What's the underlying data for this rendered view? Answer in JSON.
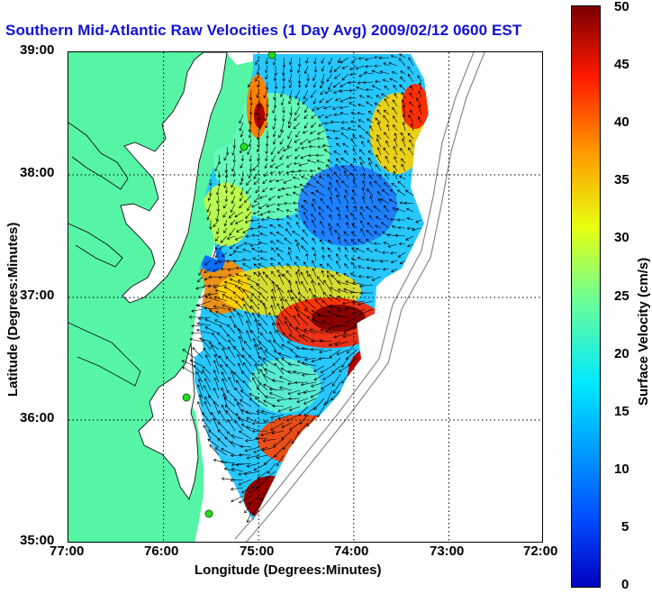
{
  "title": "Southern Mid-Atlantic Raw Velocities (1 Day Avg) 2009/02/12 0600 EST",
  "axes": {
    "xlabel": "Longitude (Degrees:Minutes)",
    "ylabel": "Latitude (Degrees:Minutes)",
    "x_ticks": [
      "77:00",
      "76:00",
      "75:00",
      "74:00",
      "73:00",
      "72:00"
    ],
    "y_ticks": [
      "39:00",
      "38:00",
      "37:00",
      "36:00",
      "35:00"
    ],
    "x_range_deg_west": [
      77,
      72
    ],
    "y_range_deg_north": [
      35,
      39
    ],
    "grid": "dotted"
  },
  "colorbar": {
    "label": "Surface Velocity (cm/s)",
    "ticks": [
      "50",
      "45",
      "40",
      "35",
      "30",
      "25",
      "20",
      "15",
      "10",
      "5",
      "0"
    ],
    "range": [
      0,
      50
    ],
    "colormap": "jet"
  },
  "colors": {
    "title": "#1010d8",
    "land": "#55f5a5",
    "water": "#ffffff",
    "vector": "#000000",
    "site_marker": "#22dd22"
  },
  "sites": [
    "north-site",
    "mid-site",
    "south-site-1",
    "south-site-2"
  ]
}
